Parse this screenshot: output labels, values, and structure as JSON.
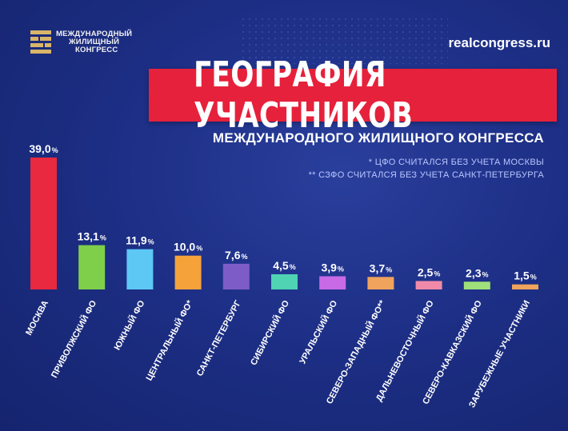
{
  "logo": {
    "line1": "МЕЖДУНАРОДНЫЙ",
    "line2": "ЖИЛИЩНЫЙ",
    "line3": "КОНГРЕСС"
  },
  "site": "realcongress.ru",
  "title": "ГЕОГРАФИЯ УЧАСТНИКОВ",
  "subtitle": "МЕЖДУНАРОДНОГО ЖИЛИЩНОГО КОНГРЕССА",
  "notes": [
    "* ЦФО СЧИТАЛСЯ БЕЗ УЧЕТА МОСКВЫ",
    "** СЗФО СЧИТАЛСЯ БЕЗ УЧЕТА САНКТ-ПЕТЕРБУРГА"
  ],
  "colors": {
    "background": "#1d2f86",
    "accent": "#e6213b"
  },
  "chart_data": {
    "type": "bar",
    "title": "ГЕОГРАФИЯ УЧАСТНИКОВ",
    "categories": [
      "МОСКВА",
      "ПРИВОЛЖСКИЙ ФО",
      "ЮЖНЫЙ ФО",
      "ЦЕНТРАЛЬНЫЙ ФО*",
      "САНКТ-ПЕТЕРБУРГ",
      "СИБИРСКИЙ ФО",
      "УРАЛЬСКИЙ ФО",
      "СЕВЕРО-ЗАПАДНЫЙ ФО**",
      "ДАЛЬНЕВОСТОЧНЫЙ ФО",
      "СЕВЕРО-КАВКАЗСКИЙ ФО",
      "ЗАРУБЕЖНЫЕ УЧАСТНИКИ"
    ],
    "values": [
      39.0,
      13.1,
      11.9,
      10.0,
      7.6,
      4.5,
      3.9,
      3.7,
      2.5,
      2.3,
      1.5
    ],
    "value_labels": [
      "39,0",
      "13,1",
      "11,9",
      "10,0",
      "7,6",
      "4,5",
      "3,9",
      "3,7",
      "2,5",
      "2,3",
      "1,5"
    ],
    "unit": "%",
    "colors": [
      "#e8293f",
      "#7fcf4a",
      "#5ec8f5",
      "#f5a23a",
      "#7e5cc8",
      "#4fd3b3",
      "#c86ae6",
      "#f0a35c",
      "#f08aa8",
      "#9fe07a",
      "#f0a35c"
    ],
    "ylim": [
      0,
      39.0
    ],
    "grid": false,
    "legend": "none"
  }
}
